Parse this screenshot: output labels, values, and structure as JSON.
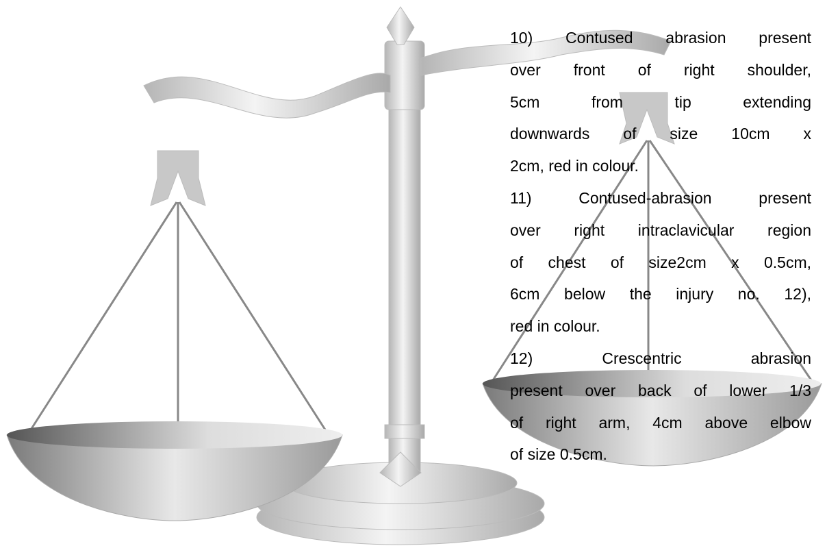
{
  "paragraphs": [
    {
      "lines": [
        "10) Contused abrasion present",
        "over front of right shoulder,",
        "5cm from tip extending",
        "downwards of size 10cm x",
        "2cm, red in colour."
      ]
    },
    {
      "lines": [
        "11) Contused-abrasion present",
        "over right intraclavicular region",
        "of chest of size2cm x 0.5cm,",
        "6cm below the injury no. 12),",
        "red in colour."
      ]
    },
    {
      "lines": [
        "12) Crescentric abrasion",
        "present over back of lower 1/3",
        "of right arm, 4cm above elbow",
        "of size 0.5cm."
      ]
    }
  ]
}
